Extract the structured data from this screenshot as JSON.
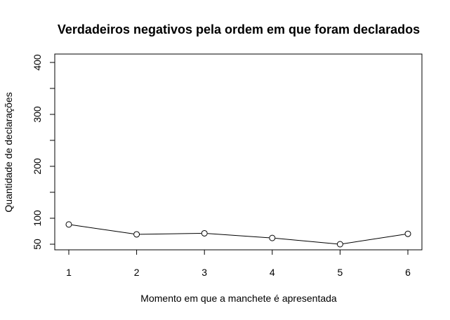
{
  "chart_data": {
    "type": "line",
    "title": "Verdadeiros negativos pela ordem em que foram declarados",
    "xlabel": "Momento em que a manchete é apresentada",
    "ylabel": "Quantidade de declarações",
    "x": [
      1,
      2,
      3,
      4,
      5,
      6
    ],
    "xticks": [
      "1",
      "2",
      "3",
      "4",
      "5",
      "6"
    ],
    "yticks": [
      "50",
      "100",
      "200",
      "300",
      "400"
    ],
    "ytick_values": [
      50,
      100,
      200,
      300,
      400
    ],
    "series": [
      {
        "values": [
          88,
          69,
          71,
          62,
          50,
          70
        ]
      }
    ],
    "xlim": [
      1,
      6
    ],
    "ylim": [
      50,
      400
    ],
    "marker": "open-circle",
    "grid": false,
    "colors": {
      "line": "#000000",
      "marker_fill": "#ffffff",
      "box": "#000000"
    }
  }
}
